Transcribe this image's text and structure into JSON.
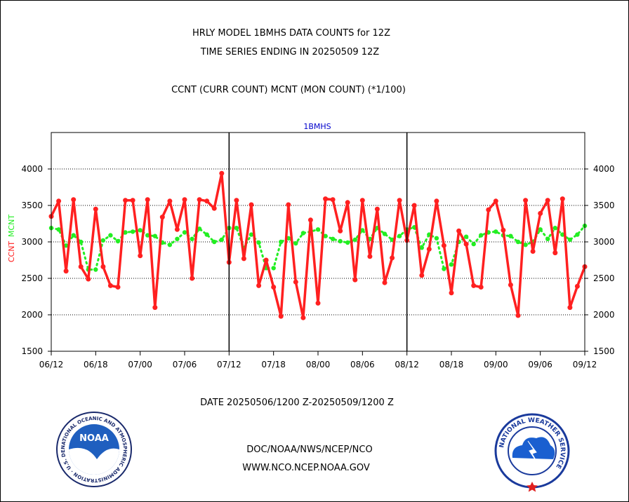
{
  "titles": {
    "line1": "HRLY MODEL 1BMHS DATA COUNTS for 12Z",
    "line2": "TIME SERIES ENDING IN 20250509 12Z",
    "line3": "CCNT (CURR COUNT) MCNT (MON COUNT) (*1/100)"
  },
  "panel_label": "1BMHS",
  "ylabel": {
    "ccnt": "CCNT",
    "mcnt": "MCNT"
  },
  "date_range": "DATE 20250506/1200 Z-20250509/1200 Z",
  "footer": {
    "line1": "DOC/NOAA/NWS/NCEP/NCO",
    "line2": "WWW.NCO.NCEP.NOAA.GOV"
  },
  "logos": {
    "noaa": {
      "center_text": "NOAA",
      "ring_text": "NATIONAL OCEANIC AND ATMOSPHERIC ADMINISTRATION · U.S. DEPARTMENT OF COMMERCE"
    },
    "nws": {
      "ring_text": "NATIONAL WEATHER SERVICE"
    }
  },
  "colors": {
    "ccnt": "#ff2020",
    "mcnt": "#22ee22",
    "axis": "#000000",
    "title": "#000000",
    "panel_label": "#0000cc",
    "footer": "#0000cc",
    "date": "#ff0000"
  },
  "chart_data": {
    "type": "line",
    "x_unit": "hour since 06/12",
    "xlim": [
      0,
      72
    ],
    "ylim": [
      1500,
      4500
    ],
    "yticks": [
      1500,
      2000,
      2500,
      3000,
      3500,
      4000
    ],
    "xticks": [
      {
        "x": 0,
        "label": "06/12"
      },
      {
        "x": 6,
        "label": "06/18"
      },
      {
        "x": 12,
        "label": "07/00"
      },
      {
        "x": 18,
        "label": "07/06"
      },
      {
        "x": 24,
        "label": "07/12"
      },
      {
        "x": 30,
        "label": "07/18"
      },
      {
        "x": 36,
        "label": "08/00"
      },
      {
        "x": 42,
        "label": "08/06"
      },
      {
        "x": 48,
        "label": "08/12"
      },
      {
        "x": 54,
        "label": "08/18"
      },
      {
        "x": 60,
        "label": "09/00"
      },
      {
        "x": 66,
        "label": "09/06"
      },
      {
        "x": 72,
        "label": "09/12"
      }
    ],
    "day_separators": [
      24,
      48
    ],
    "grid": "horizontal dotted",
    "series": [
      {
        "name": "CCNT",
        "values": [
          3350,
          3560,
          2600,
          3580,
          2660,
          2490,
          3450,
          2660,
          2400,
          2380,
          3570,
          3570,
          2810,
          3580,
          2100,
          3340,
          3560,
          3170,
          3580,
          2500,
          3580,
          3560,
          3460,
          3940,
          2720,
          3570,
          2770,
          3510,
          2400,
          2750,
          2380,
          1980,
          3510,
          2450,
          1960,
          3300,
          2160,
          3590,
          3580,
          3150,
          3540,
          2480,
          3570,
          2800,
          3450,
          2440,
          2780,
          3570,
          3020,
          3500,
          2540,
          2900,
          3560,
          2950,
          2300,
          3150,
          2970,
          2400,
          2380,
          3440,
          3560,
          3160,
          2410,
          1990,
          3570,
          2870,
          3390,
          3570,
          2850,
          3590,
          2100,
          2390,
          2660
        ]
      },
      {
        "name": "MCNT",
        "values": [
          3190,
          3170,
          2950,
          3090,
          3000,
          2620,
          2620,
          3020,
          3090,
          3010,
          3130,
          3140,
          3160,
          3090,
          3080,
          2990,
          2960,
          3040,
          3130,
          3040,
          3180,
          3100,
          3000,
          3030,
          3190,
          3190,
          2920,
          3100,
          2990,
          2640,
          2640,
          3000,
          3050,
          2980,
          3120,
          3140,
          3170,
          3080,
          3040,
          3010,
          2990,
          3030,
          3160,
          3040,
          3190,
          3110,
          3030,
          3080,
          3170,
          3200,
          2920,
          3100,
          3050,
          2630,
          2690,
          3000,
          3070,
          2970,
          3090,
          3130,
          3140,
          3090,
          3080,
          3000,
          2960,
          3000,
          3170,
          3040,
          3190,
          3100,
          3030,
          3100,
          3220
        ]
      }
    ]
  }
}
